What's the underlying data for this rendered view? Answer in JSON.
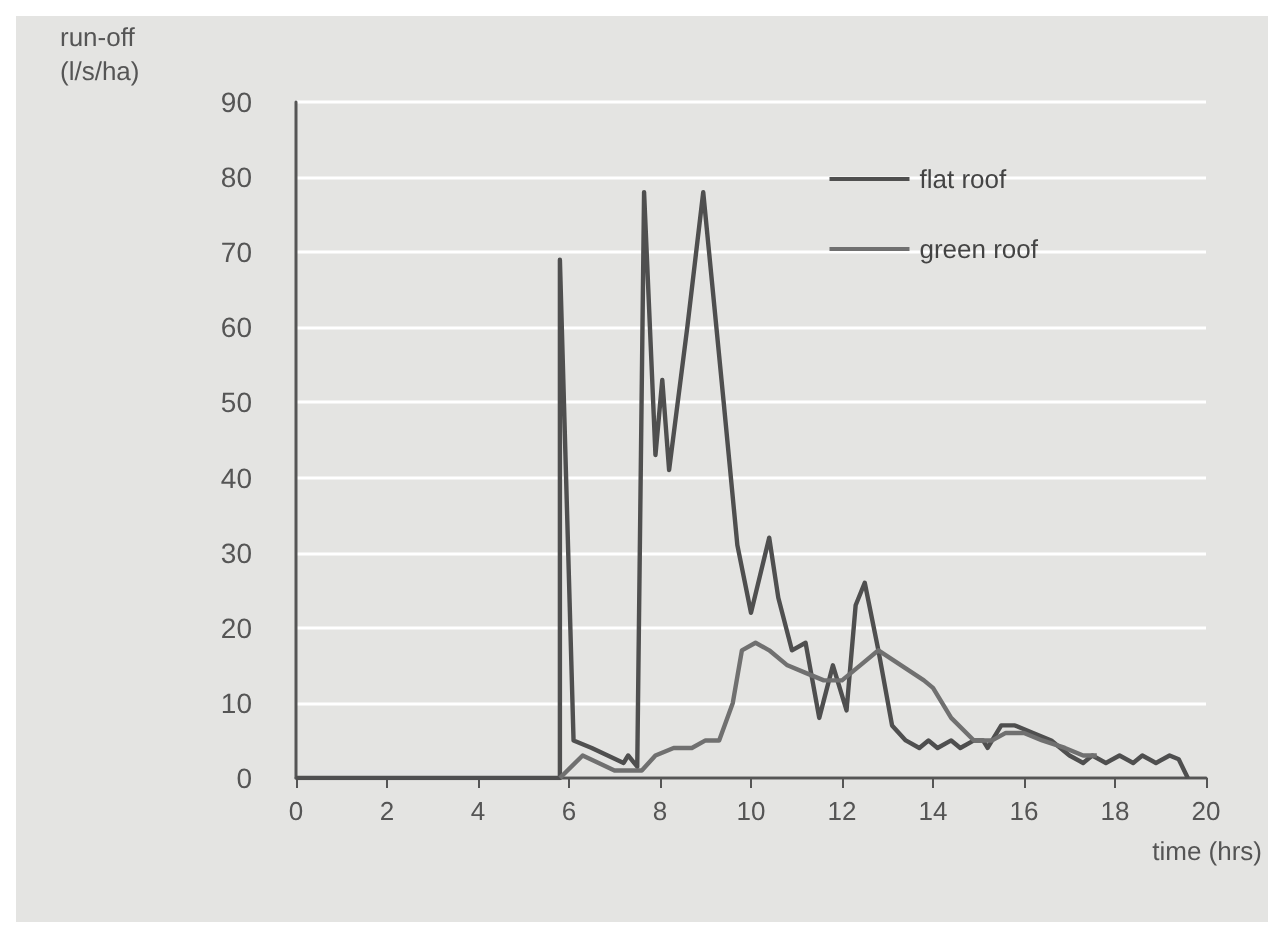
{
  "chart_data": {
    "type": "line",
    "xlabel": "time (hrs)",
    "ylabel": "run-off\n(l/s/ha)",
    "xlim": [
      0,
      20
    ],
    "xticks": [
      0,
      2,
      4,
      6,
      8,
      10,
      12,
      14,
      16,
      18,
      20
    ],
    "ylim": [
      0,
      90
    ],
    "yticks": [
      0,
      10,
      20,
      30,
      40,
      50,
      60,
      70,
      80,
      90
    ],
    "grid": "y",
    "legend": "top right",
    "marker": "none",
    "line_style": "solid",
    "series": [
      {
        "name": "flat roof",
        "color": "#4f4f4f",
        "x": [
          0,
          5.8,
          5.8,
          6.1,
          6.5,
          7.2,
          7.3,
          7.5,
          7.65,
          7.9,
          8.05,
          8.2,
          8.6,
          8.95,
          9.4,
          9.7,
          10.0,
          10.2,
          10.4,
          10.6,
          10.9,
          11.2,
          11.5,
          11.8,
          12.1,
          12.3,
          12.5,
          12.8,
          13.1,
          13.4,
          13.7,
          13.9,
          14.1,
          14.4,
          14.6,
          14.9,
          15.1,
          15.2,
          15.5,
          15.8,
          16.2,
          16.6,
          17.0,
          17.3,
          17.5,
          17.8,
          18.1,
          18.4,
          18.6,
          18.9,
          19.2,
          19.4,
          19.6
        ],
        "values": [
          0,
          0,
          69,
          5,
          4,
          2,
          3,
          1.5,
          78,
          43,
          53,
          41,
          60,
          78,
          50,
          31,
          22,
          27,
          32,
          24,
          17,
          18,
          8,
          15,
          9,
          23,
          26,
          17,
          7,
          5,
          4,
          5,
          4,
          5,
          4,
          5,
          5,
          4,
          7,
          7,
          6,
          5,
          3,
          2,
          3,
          2,
          3,
          2,
          3,
          2,
          3,
          2.5,
          0
        ]
      },
      {
        "name": "green roof",
        "color": "#707070",
        "x": [
          5.8,
          6.3,
          7.0,
          7.6,
          7.9,
          8.3,
          8.7,
          9.0,
          9.3,
          9.6,
          9.8,
          10.1,
          10.4,
          10.8,
          11.2,
          11.6,
          12.0,
          12.4,
          12.8,
          13.3,
          13.8,
          14.0,
          14.4,
          14.9,
          15.3,
          15.6,
          16.0,
          16.4,
          16.9,
          17.3,
          17.6
        ],
        "values": [
          0,
          3,
          1,
          1,
          3,
          4,
          4,
          5,
          5,
          10,
          17,
          18,
          17,
          15,
          14,
          13,
          13,
          15,
          17,
          15,
          13,
          12,
          8,
          5,
          5,
          6,
          6,
          5,
          4,
          3,
          3
        ]
      }
    ]
  }
}
